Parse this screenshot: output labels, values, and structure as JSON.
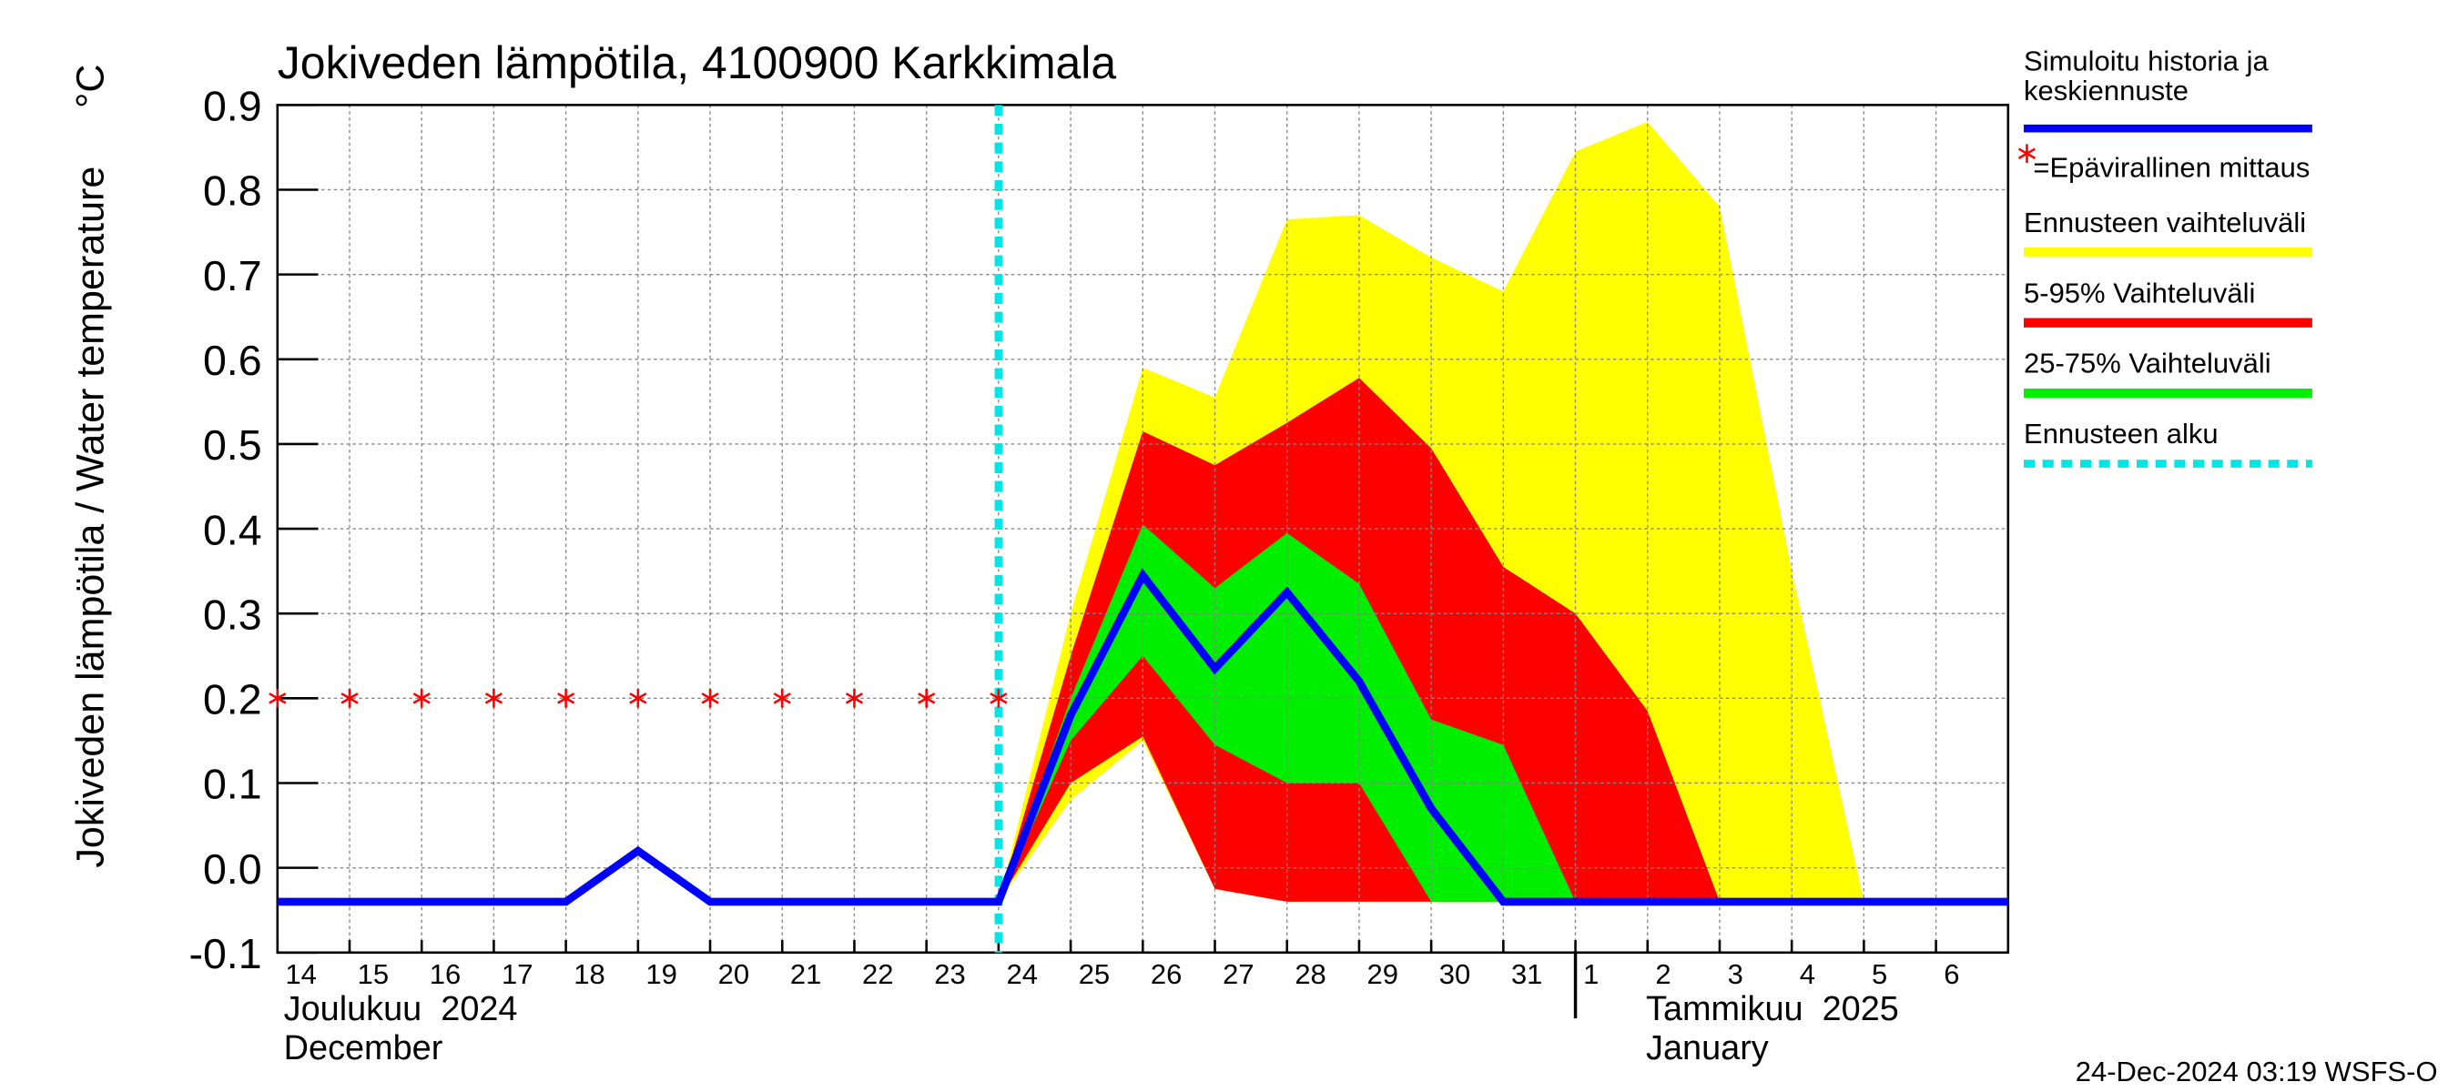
{
  "chart_data": {
    "type": "line",
    "title": "Jokiveden lämpötila, 4100900 Karkkimala",
    "y_label": "Jokiveden lämpötila / Water temperature",
    "y_unit": "°C",
    "footer": "24-Dec-2024 03:19 WSFS-O",
    "months": [
      {
        "date": "2024-12-14",
        "fi": "Joulukuu  2024",
        "en": "December"
      },
      {
        "date": "2025-01-01",
        "fi": "Tammikuu  2025",
        "en": "January"
      }
    ],
    "x": [
      "2024-12-14",
      "2024-12-15",
      "2024-12-16",
      "2024-12-17",
      "2024-12-18",
      "2024-12-19",
      "2024-12-20",
      "2024-12-21",
      "2024-12-22",
      "2024-12-23",
      "2024-12-24",
      "2024-12-25",
      "2024-12-26",
      "2024-12-27",
      "2024-12-28",
      "2024-12-29",
      "2024-12-30",
      "2024-12-31",
      "2025-01-01",
      "2025-01-02",
      "2025-01-03",
      "2025-01-04",
      "2025-01-05",
      "2025-01-06",
      "2025-01-07"
    ],
    "xlim": [
      "2024-12-14",
      "2025-01-07"
    ],
    "xticks": [
      {
        "value": "2024-12-14",
        "label": "14"
      },
      {
        "value": "2024-12-15",
        "label": "15"
      },
      {
        "value": "2024-12-16",
        "label": "16"
      },
      {
        "value": "2024-12-17",
        "label": "17"
      },
      {
        "value": "2024-12-18",
        "label": "18"
      },
      {
        "value": "2024-12-19",
        "label": "19"
      },
      {
        "value": "2024-12-20",
        "label": "20"
      },
      {
        "value": "2024-12-21",
        "label": "21"
      },
      {
        "value": "2024-12-22",
        "label": "22"
      },
      {
        "value": "2024-12-23",
        "label": "23"
      },
      {
        "value": "2024-12-24",
        "label": "24"
      },
      {
        "value": "2024-12-25",
        "label": "25"
      },
      {
        "value": "2024-12-26",
        "label": "26"
      },
      {
        "value": "2024-12-27",
        "label": "27"
      },
      {
        "value": "2024-12-28",
        "label": "28"
      },
      {
        "value": "2024-12-29",
        "label": "29"
      },
      {
        "value": "2024-12-30",
        "label": "30"
      },
      {
        "value": "2024-12-31",
        "label": "31"
      },
      {
        "value": "2025-01-01",
        "label": "1"
      },
      {
        "value": "2025-01-02",
        "label": "2"
      },
      {
        "value": "2025-01-03",
        "label": "3"
      },
      {
        "value": "2025-01-04",
        "label": "4"
      },
      {
        "value": "2025-01-05",
        "label": "5"
      },
      {
        "value": "2025-01-06",
        "label": "6"
      }
    ],
    "ylim": [
      -0.1,
      0.9
    ],
    "yticks": [
      -0.1,
      {
        "value": 0,
        "label": "0.0"
      },
      0.1,
      0.2,
      0.3,
      0.4,
      0.5,
      0.6,
      0.7,
      0.8,
      0.9
    ],
    "grid": true,
    "bands": [
      {
        "name": "Ennusteen vaihteluväli",
        "color": "#ffff00",
        "low": [
          null,
          null,
          null,
          null,
          null,
          null,
          null,
          null,
          null,
          null,
          -0.04,
          0.08,
          0.15,
          -0.025,
          -0.04,
          -0.04,
          -0.04,
          -0.04,
          -0.04,
          -0.04,
          -0.04,
          -0.04,
          -0.04,
          null,
          null
        ],
        "high": [
          null,
          null,
          null,
          null,
          null,
          null,
          null,
          null,
          null,
          null,
          -0.04,
          0.3,
          0.59,
          0.555,
          0.765,
          0.77,
          0.72,
          0.68,
          0.845,
          0.88,
          0.78,
          0.35,
          -0.04,
          null,
          null
        ]
      },
      {
        "name": "5-95% Vaihteluväli",
        "color": "#ff0000",
        "low": [
          null,
          null,
          null,
          null,
          null,
          null,
          null,
          null,
          null,
          null,
          -0.04,
          0.1,
          0.155,
          -0.025,
          -0.04,
          -0.04,
          -0.04,
          -0.04,
          -0.04,
          -0.04,
          -0.04,
          null,
          null,
          null,
          null
        ],
        "high": [
          null,
          null,
          null,
          null,
          null,
          null,
          null,
          null,
          null,
          null,
          -0.04,
          0.25,
          0.515,
          0.475,
          0.525,
          0.578,
          0.495,
          0.355,
          0.3,
          0.185,
          -0.04,
          null,
          null,
          null,
          null
        ]
      },
      {
        "name": "25-75% Vaihteluväli",
        "color": "#00ee00",
        "low": [
          null,
          null,
          null,
          null,
          null,
          null,
          null,
          null,
          null,
          null,
          -0.04,
          0.15,
          0.25,
          0.145,
          0.1,
          0.1,
          -0.04,
          -0.04,
          -0.04,
          null,
          null,
          null,
          null,
          null,
          null
        ],
        "high": [
          null,
          null,
          null,
          null,
          null,
          null,
          null,
          null,
          null,
          null,
          -0.04,
          0.2,
          0.405,
          0.33,
          0.395,
          0.335,
          0.175,
          0.145,
          -0.04,
          null,
          null,
          null,
          null,
          null,
          null
        ]
      }
    ],
    "series": [
      {
        "name": "Simuloitu historia ja keskiennuste",
        "color": "#0000ff",
        "values": [
          -0.04,
          -0.04,
          -0.04,
          -0.04,
          -0.04,
          0.02,
          -0.04,
          -0.04,
          -0.04,
          -0.04,
          -0.04,
          0.18,
          0.345,
          0.235,
          0.325,
          0.22,
          0.07,
          -0.04,
          -0.04,
          -0.04,
          -0.04,
          -0.04,
          -0.04,
          -0.04,
          -0.04
        ]
      },
      {
        "name": "=Epävirallinen mittaus",
        "color": "#ff0000",
        "marker": "asterisk",
        "values": [
          0.2,
          0.2,
          0.2,
          0.2,
          0.2,
          0.2,
          0.2,
          0.2,
          0.2,
          0.2,
          0.2,
          null,
          null,
          null,
          null,
          null,
          null,
          null,
          null,
          null,
          null,
          null,
          null,
          null,
          null
        ]
      }
    ],
    "forecast_start": {
      "name": "Ennusteen alku",
      "date": "2024-12-24",
      "color": "#00e5e5"
    }
  }
}
